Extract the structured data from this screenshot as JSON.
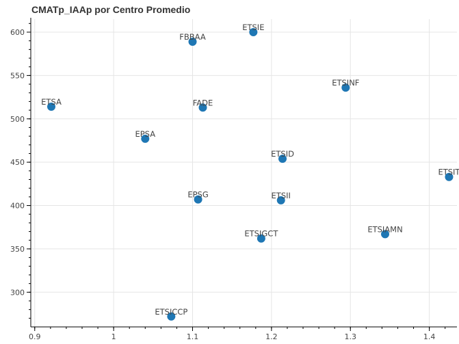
{
  "chart_data": {
    "type": "scatter",
    "title": "CMATp_IAAp por Centro Promedio",
    "xlabel": "",
    "ylabel": "",
    "xlim": [
      0.895,
      1.435
    ],
    "ylim": [
      260,
      615
    ],
    "x_ticks": [
      0.9,
      1,
      1.1,
      1.2,
      1.3,
      1.4
    ],
    "x_tick_labels": [
      "0.9",
      "1",
      "1.1",
      "1.2",
      "1.3",
      "1.4"
    ],
    "y_ticks": [
      300,
      350,
      400,
      450,
      500,
      550,
      600
    ],
    "y_tick_labels": [
      "300",
      "350",
      "400",
      "450",
      "500",
      "550",
      "600"
    ],
    "grid": true,
    "marker_color": "#1f77b4",
    "points": [
      {
        "label": "ETSIE",
        "x": 1.177,
        "y": 600
      },
      {
        "label": "FBBAA",
        "x": 1.1,
        "y": 589
      },
      {
        "label": "ETSINF",
        "x": 1.294,
        "y": 536
      },
      {
        "label": "ETSA",
        "x": 0.921,
        "y": 514
      },
      {
        "label": "FADE",
        "x": 1.113,
        "y": 513
      },
      {
        "label": "EPSA",
        "x": 1.04,
        "y": 477
      },
      {
        "label": "ETSID",
        "x": 1.214,
        "y": 454
      },
      {
        "label": "ETSIT",
        "x": 1.425,
        "y": 433
      },
      {
        "label": "EPSG",
        "x": 1.107,
        "y": 407
      },
      {
        "label": "ETSII",
        "x": 1.212,
        "y": 406
      },
      {
        "label": "ETSIAMN",
        "x": 1.344,
        "y": 367
      },
      {
        "label": "ETSIGCT",
        "x": 1.187,
        "y": 362
      },
      {
        "label": "ETSICCP",
        "x": 1.073,
        "y": 272
      }
    ]
  }
}
